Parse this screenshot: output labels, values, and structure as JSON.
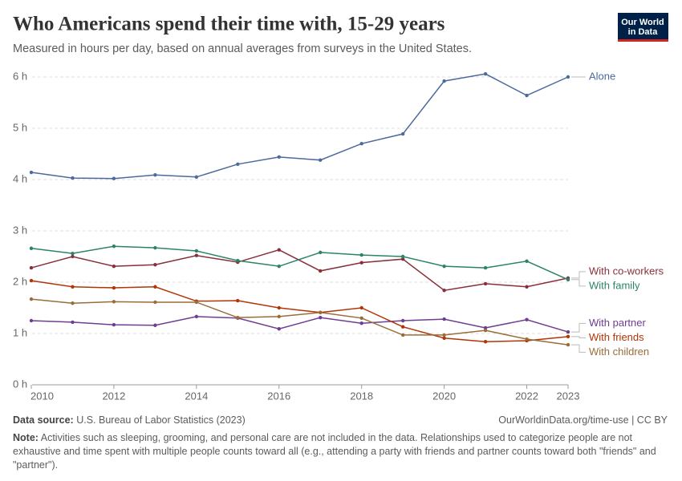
{
  "chart_data": {
    "type": "line",
    "title": "Who Americans spend their time with, 15-29 years",
    "subtitle": "Measured in hours per day, based on annual averages from surveys in the United States.",
    "logo": [
      "Our World",
      "in Data"
    ],
    "source_label": "Data source:",
    "source": "U.S. Bureau of Labor Statistics (2023)",
    "url": "OurWorldinData.org/time-use | CC BY",
    "note_label": "Note:",
    "note": "Activities such as sleeping, grooming, and personal care are not included in the data. Relationships used to categorize people are not exhaustive and time spent with multiple people counts toward all (e.g., attending a party with friends and partner counts toward both \"friends\" and \"partner\").",
    "x": [
      2010,
      2011,
      2012,
      2013,
      2014,
      2015,
      2016,
      2017,
      2018,
      2019,
      2020,
      2021,
      2022,
      2023
    ],
    "xlim": [
      2010,
      2023
    ],
    "xticks": [
      2010,
      2012,
      2014,
      2016,
      2018,
      2020,
      2022,
      2023
    ],
    "ylim": [
      0,
      6
    ],
    "yticks": [
      {
        "value": 0,
        "label": "0 h"
      },
      {
        "value": 1,
        "label": "1 h"
      },
      {
        "value": 2,
        "label": "2 h"
      },
      {
        "value": 3,
        "label": "3 h"
      },
      {
        "value": 4,
        "label": "4 h"
      },
      {
        "value": 5,
        "label": "5 h"
      },
      {
        "value": 6,
        "label": "6 h"
      }
    ],
    "grid": true,
    "series": [
      {
        "name": "Alone",
        "color": "#4c6a9c",
        "values": [
          4.14,
          4.03,
          4.02,
          4.09,
          4.05,
          4.3,
          4.44,
          4.38,
          4.7,
          4.89,
          5.92,
          6.06,
          5.64,
          6.0
        ]
      },
      {
        "name": "With co-workers",
        "color": "#883039",
        "values": [
          2.28,
          2.5,
          2.31,
          2.34,
          2.52,
          2.39,
          2.63,
          2.22,
          2.38,
          2.45,
          1.84,
          1.97,
          1.91,
          2.08
        ]
      },
      {
        "name": "With family",
        "color": "#2c8465",
        "values": [
          2.66,
          2.56,
          2.7,
          2.67,
          2.61,
          2.42,
          2.31,
          2.58,
          2.53,
          2.5,
          2.31,
          2.28,
          2.41,
          2.05
        ]
      },
      {
        "name": "With partner",
        "color": "#6d3e91",
        "values": [
          1.25,
          1.22,
          1.17,
          1.16,
          1.33,
          1.3,
          1.09,
          1.31,
          1.2,
          1.25,
          1.28,
          1.11,
          1.27,
          1.03
        ]
      },
      {
        "name": "With friends",
        "color": "#b13507",
        "values": [
          2.03,
          1.91,
          1.89,
          1.91,
          1.63,
          1.64,
          1.5,
          1.41,
          1.5,
          1.13,
          0.91,
          0.84,
          0.86,
          0.94
        ]
      },
      {
        "name": "With children",
        "color": "#996d39",
        "values": [
          1.67,
          1.59,
          1.62,
          1.61,
          1.61,
          1.31,
          1.33,
          1.41,
          1.3,
          0.97,
          0.97,
          1.06,
          0.89,
          0.78
        ]
      }
    ]
  }
}
